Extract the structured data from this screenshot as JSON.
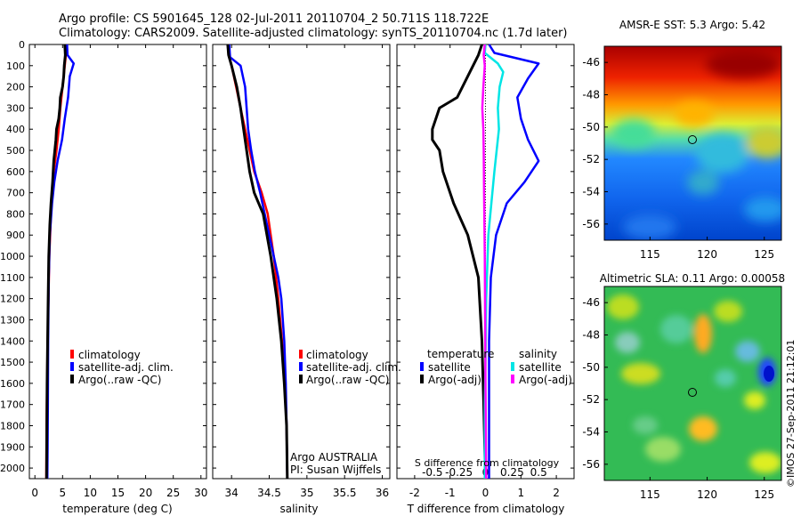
{
  "header": {
    "line1": "Argo profile: CS 5901645_128 02-Jul-2011 20110704_2 50.711S 118.722E",
    "line2": "Climatology: CARS2009. Satellite-adjusted climatology: synTS_20110704.nc (1.7d later)"
  },
  "colors": {
    "clim": "#ff0000",
    "sat": "#0000ff",
    "argo": "#000000",
    "cyan": "#00e5e5",
    "magenta": "#ff00ff"
  },
  "chart_data": [
    {
      "type": "line",
      "id": "temperature",
      "xlabel": "temperature (deg C)",
      "xlim": [
        -1,
        31
      ],
      "ylim": [
        0,
        2050
      ],
      "xticks": [
        "0",
        "5",
        "10",
        "15",
        "20",
        "25",
        "30"
      ],
      "yticks": [
        "0",
        "100",
        "200",
        "300",
        "400",
        "500",
        "600",
        "700",
        "800",
        "900",
        "1000",
        "1100",
        "1200",
        "1300",
        "1400",
        "1500",
        "1600",
        "1700",
        "1800",
        "1900",
        "2000"
      ],
      "legend": [
        "climatology",
        "satellite-adj. clim.",
        "Argo(..raw -QC)"
      ],
      "series": [
        {
          "key": "clim",
          "x": [
            5.6,
            5.6,
            5.4,
            5.0,
            4.6,
            4.3,
            3.9,
            3.4,
            3.1,
            2.9,
            2.6,
            2.45,
            2.3,
            2.2,
            2.1,
            2.05
          ],
          "y": [
            0,
            50,
            100,
            200,
            300,
            400,
            500,
            600,
            700,
            800,
            1000,
            1200,
            1400,
            1600,
            1800,
            2050
          ]
        },
        {
          "key": "sat",
          "x": [
            5.8,
            5.9,
            7.0,
            6.3,
            6.0,
            5.4,
            4.9,
            4.1,
            3.5,
            3.1,
            2.7,
            2.5,
            2.4,
            2.35,
            2.3,
            2.25
          ],
          "y": [
            0,
            50,
            90,
            150,
            250,
            350,
            450,
            550,
            650,
            750,
            900,
            1100,
            1400,
            1700,
            1900,
            2050
          ]
        },
        {
          "key": "argo",
          "x": [
            5.4,
            5.5,
            5.3,
            5.2,
            5.0,
            4.6,
            4.5,
            4.3,
            3.9,
            3.8,
            3.4,
            3.2,
            2.9,
            2.7,
            2.5,
            2.4,
            2.3,
            2.2,
            2.15,
            2.1
          ],
          "y": [
            0,
            50,
            100,
            150,
            200,
            250,
            300,
            350,
            400,
            450,
            550,
            650,
            750,
            850,
            1000,
            1200,
            1400,
            1600,
            1800,
            2050
          ]
        }
      ]
    },
    {
      "type": "line",
      "id": "salinity",
      "xlabel": "salinity",
      "xlim": [
        33.75,
        36.1
      ],
      "ylim": [
        0,
        2050
      ],
      "xticks": [
        "34",
        "34.5",
        "35",
        "35.5",
        "36"
      ],
      "legend": [
        "climatology",
        "satellite-adj. clim.",
        "Argo(..raw -QC)"
      ],
      "annotations": [
        "Argo AUSTRALIA",
        "PI: Susan Wijffels"
      ],
      "series": [
        {
          "key": "clim",
          "x": [
            33.95,
            33.96,
            34.0,
            34.06,
            34.12,
            34.18,
            34.24,
            34.3,
            34.4,
            34.48,
            34.56,
            34.62,
            34.67,
            34.71,
            34.73,
            34.74
          ],
          "y": [
            0,
            50,
            100,
            200,
            300,
            400,
            500,
            600,
            700,
            800,
            1000,
            1200,
            1400,
            1600,
            1800,
            2050
          ]
        },
        {
          "key": "sat",
          "x": [
            33.97,
            33.98,
            34.12,
            34.18,
            34.2,
            34.22,
            34.26,
            34.31,
            34.38,
            34.44,
            34.5,
            34.56,
            34.62,
            34.66,
            34.7,
            34.72,
            34.73,
            34.74
          ],
          "y": [
            0,
            60,
            100,
            200,
            300,
            400,
            500,
            600,
            700,
            800,
            900,
            1000,
            1100,
            1200,
            1400,
            1600,
            1800,
            2050
          ]
        },
        {
          "key": "argo",
          "x": [
            33.95,
            33.96,
            34.0,
            34.07,
            34.12,
            34.16,
            34.2,
            34.24,
            34.3,
            34.42,
            34.52,
            34.6,
            34.66,
            34.7,
            34.73,
            34.74
          ],
          "y": [
            0,
            50,
            100,
            200,
            300,
            400,
            500,
            600,
            700,
            800,
            1000,
            1200,
            1400,
            1600,
            1800,
            2050
          ]
        }
      ]
    },
    {
      "type": "line",
      "id": "difference",
      "xlabel": "T difference from climatology",
      "xlabel2": "S difference from climatology",
      "xlim": [
        -2.5,
        2.5
      ],
      "ylim": [
        0,
        2050
      ],
      "xticks": [
        "-2",
        "-1",
        "0",
        "1",
        "2"
      ],
      "xticks2": [
        "-0.5",
        "-0.25",
        "0",
        "0.25",
        "0.5"
      ],
      "legend_headers": [
        "temperature",
        "salinity"
      ],
      "legend": [
        "satellite",
        "Argo(-adj)",
        "satellite",
        "Argo(-adj)"
      ],
      "series": [
        {
          "key": "sat",
          "x": [
            0.1,
            0.25,
            1.5,
            1.2,
            0.9,
            1.0,
            1.2,
            1.5,
            1.1,
            0.6,
            0.3,
            0.15,
            0.1,
            0.1,
            0.1,
            0.1
          ],
          "y": [
            0,
            40,
            90,
            160,
            250,
            350,
            450,
            550,
            650,
            750,
            900,
            1100,
            1400,
            1700,
            1900,
            2050
          ]
        },
        {
          "key": "argo",
          "x": [
            -0.1,
            -0.2,
            -0.5,
            -0.8,
            -1.3,
            -1.5,
            -1.5,
            -1.3,
            -1.2,
            -0.9,
            -0.5,
            -0.2,
            -0.1,
            -0.05,
            0.0
          ],
          "y": [
            0,
            50,
            150,
            250,
            300,
            400,
            450,
            500,
            600,
            750,
            900,
            1100,
            1400,
            1700,
            2050
          ]
        },
        {
          "key": "cyan",
          "x": [
            0.0,
            -0.02,
            0.35,
            0.5,
            0.4,
            0.35,
            0.38,
            0.25,
            0.08,
            0.02,
            0.0,
            -0.02,
            -0.02,
            -0.02
          ],
          "y": [
            0,
            40,
            90,
            130,
            200,
            300,
            400,
            600,
            900,
            1200,
            1500,
            1700,
            1900,
            2050
          ]
        },
        {
          "key": "magenta",
          "x": [
            -0.02,
            -0.05,
            -0.02,
            -0.06,
            -0.09,
            -0.06,
            -0.05,
            -0.04,
            -0.02,
            -0.01,
            0.0,
            0.02
          ],
          "y": [
            0,
            50,
            100,
            200,
            300,
            400,
            500,
            700,
            1000,
            1300,
            1600,
            2050
          ]
        }
      ]
    },
    {
      "type": "heatmap",
      "id": "sst",
      "title": "AMSR-E SST: 5.3 Argo: 5.42",
      "xlim": [
        111,
        126.5
      ],
      "ylim": [
        -57,
        -45
      ],
      "xticks": [
        "115",
        "120",
        "125"
      ],
      "yticks": [
        "-46",
        "-48",
        "-50",
        "-52",
        "-54",
        "-56"
      ],
      "marker": [
        118.722,
        -50.711
      ]
    },
    {
      "type": "heatmap",
      "id": "sla",
      "title": "Altimetric SLA: 0.11 Argo: 0.00058",
      "xlim": [
        111,
        126.5
      ],
      "ylim": [
        -57,
        -45
      ],
      "xticks": [
        "115",
        "120",
        "125"
      ],
      "yticks": [
        "-46",
        "-48",
        "-50",
        "-52",
        "-54",
        "-56"
      ],
      "marker": [
        118.722,
        -50.711
      ]
    }
  ],
  "credit": "©IMOS 27-Sep-2011 21:12:01"
}
